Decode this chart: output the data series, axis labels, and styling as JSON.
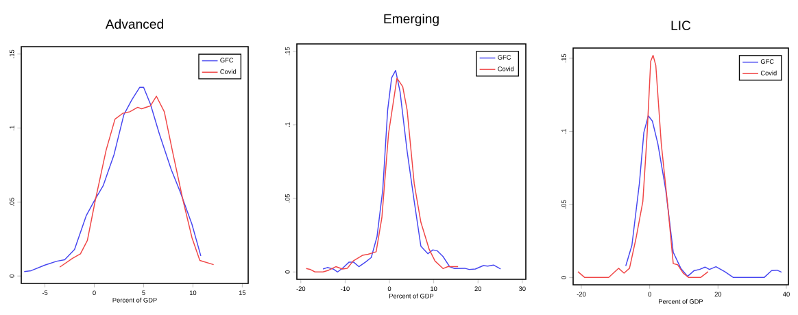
{
  "chart_data": [
    {
      "type": "line",
      "title": "Advanced",
      "xlabel": "Percent of GDP",
      "xlim": [
        -7.4,
        15.6
      ],
      "ylim": [
        -0.005,
        0.155
      ],
      "xticks": [
        -5,
        0,
        5,
        10,
        15
      ],
      "yticks": [
        0,
        {
          "value": 0.05,
          "label": ".05"
        },
        {
          "value": 0.1,
          "label": ".1"
        },
        {
          "value": 0.15,
          "label": ".15"
        }
      ],
      "legend": "top right",
      "grid": false,
      "series": [
        {
          "name": "GFC",
          "color": "#4646f0",
          "x": [
            -7.1,
            -6.4,
            -5,
            -3.8,
            -3.0,
            -2.0,
            -0.8,
            0.1,
            0.9,
            2.0,
            3.0,
            3.8,
            4.6,
            5.0,
            5.7,
            6.6,
            7.8,
            8.7,
            9.9,
            10.8
          ],
          "values": [
            0.003,
            0.0036,
            0.0074,
            0.01,
            0.011,
            0.018,
            0.041,
            0.052,
            0.061,
            0.082,
            0.109,
            0.119,
            0.1275,
            0.1275,
            0.116,
            0.096,
            0.072,
            0.057,
            0.035,
            0.0136
          ]
        },
        {
          "name": "Covid",
          "color": "#f04646",
          "x": [
            -3.5,
            -2.2,
            -1.4,
            -0.7,
            0.1,
            1.2,
            2.1,
            2.9,
            3.6,
            4.4,
            4.8,
            5.7,
            6.3,
            7.1,
            8.0,
            9.0,
            9.9,
            10.7,
            12.1
          ],
          "values": [
            0.006,
            0.012,
            0.015,
            0.024,
            0.051,
            0.085,
            0.106,
            0.11,
            0.111,
            0.114,
            0.113,
            0.115,
            0.1215,
            0.111,
            0.082,
            0.051,
            0.026,
            0.0105,
            0.0077
          ]
        }
      ]
    },
    {
      "type": "line",
      "title": "Emerging",
      "xlabel": "Percent of GDP",
      "xlim": [
        -20.9,
        30.8
      ],
      "ylim": [
        -0.005,
        0.155
      ],
      "xticks": [
        -20,
        -10,
        0,
        10,
        20,
        30
      ],
      "yticks": [
        0,
        {
          "value": 0.05,
          "label": ".05"
        },
        {
          "value": 0.1,
          "label": ".1"
        },
        {
          "value": 0.15,
          "label": ".15"
        }
      ],
      "legend": "top right",
      "grid": false,
      "series": [
        {
          "name": "GFC",
          "color": "#4646f0",
          "x": [
            -15,
            -14,
            -12.7,
            -11.7,
            -10.4,
            -9.1,
            -8.1,
            -6.9,
            -5.4,
            -4.1,
            -2.8,
            -1.5,
            -0.4,
            0.5,
            1.4,
            2.4,
            4.0,
            5.6,
            7.1,
            8.7,
            9.8,
            10.8,
            12.1,
            13.6,
            14.7,
            17,
            18,
            19.4,
            21.2,
            22.2,
            23.5,
            25.1
          ],
          "values": [
            0.002,
            0.003,
            0.002,
            0,
            0.003,
            0.0067,
            0.0067,
            0.0036,
            0.0067,
            0.0098,
            0.024,
            0.056,
            0.11,
            0.132,
            0.137,
            0.1225,
            0.082,
            0.048,
            0.0175,
            0.0124,
            0.015,
            0.0144,
            0.0105,
            0.0036,
            0.0023,
            0.0025,
            0.0017,
            0.002,
            0.0043,
            0.004,
            0.0047,
            0.002
          ]
        },
        {
          "name": "Covid",
          "color": "#f04646",
          "x": [
            -18.8,
            -17.8,
            -16.8,
            -15,
            -13.7,
            -12.1,
            -10.6,
            -9.5,
            -8.2,
            -6.1,
            -4.8,
            -3.0,
            -1.7,
            -0.2,
            1.7,
            3.0,
            4.0,
            5.6,
            7.1,
            9.0,
            10.3,
            12.1,
            13.2,
            15.5
          ],
          "values": [
            0.0023,
            0.0016,
            0,
            0,
            0.0012,
            0.0036,
            0.002,
            0.0025,
            0.0074,
            0.0113,
            0.012,
            0.0137,
            0.037,
            0.094,
            0.1317,
            0.126,
            0.11,
            0.06,
            0.0338,
            0.0152,
            0.0074,
            0.0023,
            0.0036,
            0.0036
          ]
        }
      ]
    },
    {
      "type": "line",
      "title": "LIC",
      "xlabel": "Percent of GDP",
      "xlim": [
        -22.4,
        40.6
      ],
      "ylim": [
        -0.005,
        0.157
      ],
      "xticks": [
        -20,
        0,
        20,
        40
      ],
      "yticks": [
        0,
        {
          "value": 0.05,
          "label": ".05"
        },
        {
          "value": 0.1,
          "label": ".1"
        },
        {
          "value": 0.15,
          "label": ".15"
        }
      ],
      "legend": "top right",
      "grid": false,
      "series": [
        {
          "name": "GFC",
          "color": "#4646f0",
          "x": [
            -7.0,
            -5.2,
            -3.0,
            -1.7,
            -0.4,
            0.8,
            2.4,
            4.7,
            6.9,
            9.1,
            11.1,
            13,
            14.6,
            16.2,
            17.5,
            19.4,
            22,
            24.5,
            33.5,
            35.7,
            37.3,
            38.6
          ],
          "values": [
            0.0079,
            0.022,
            0.0646,
            0.0993,
            0.1106,
            0.107,
            0.0914,
            0.06,
            0.0173,
            0.0063,
            0.0008,
            0.0047,
            0.0055,
            0.0071,
            0.0055,
            0.0074,
            0.004,
            0,
            0,
            0.0047,
            0.005,
            0.0036
          ]
        },
        {
          "name": "Covid",
          "color": "#f04646",
          "x": [
            -21,
            -19,
            -12,
            -9.1,
            -7.5,
            -5.9,
            -4.0,
            -2.0,
            -0.8,
            0.3,
            1.0,
            1.8,
            3.4,
            5.3,
            6.9,
            8.2,
            9.8,
            11.4,
            14.9,
            17.1
          ],
          "values": [
            0.004,
            0,
            0,
            0.0063,
            0.003,
            0.0063,
            0.0268,
            0.052,
            0.096,
            0.148,
            0.152,
            0.145,
            0.0914,
            0.049,
            0.0095,
            0.0087,
            0.003,
            0,
            0,
            0.004
          ]
        }
      ]
    }
  ]
}
